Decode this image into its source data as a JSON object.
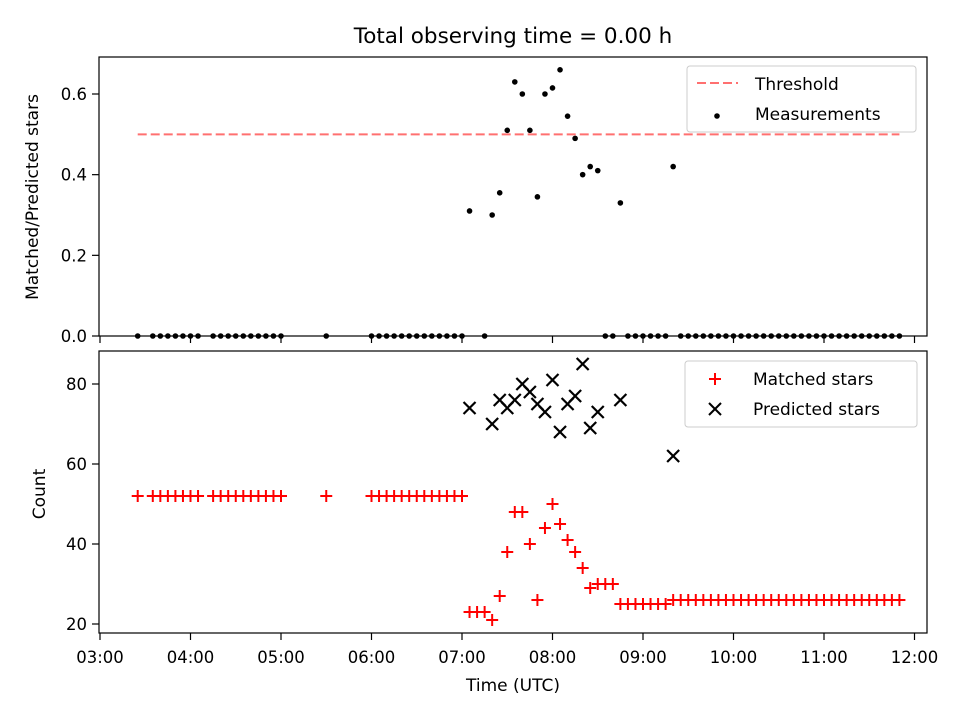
{
  "title": "Total observing time = 0.00 h",
  "chart_data": [
    {
      "type": "scatter",
      "ylabel": "Matched/Predicted stars",
      "xlabel": "",
      "xlim": [
        "03:00",
        "12:15"
      ],
      "ylim": [
        0,
        0.7
      ],
      "yticks": [
        0.0,
        0.2,
        0.4,
        0.6
      ],
      "ytick_labels": [
        "0.0",
        "0.2",
        "0.4",
        "0.6"
      ],
      "legend_position": "top-right",
      "legend": [
        "Threshold",
        "Measurements"
      ],
      "threshold": {
        "name": "Threshold",
        "value": 0.5,
        "x_start": "03:25",
        "x_end": "11:50",
        "color": "#ff7070",
        "style": "dashed"
      },
      "series": [
        {
          "name": "Measurements",
          "color": "#000000",
          "marker": "dot",
          "points": [
            [
              "03:25",
              0
            ],
            [
              "03:35",
              0
            ],
            [
              "03:40",
              0
            ],
            [
              "03:45",
              0
            ],
            [
              "03:50",
              0
            ],
            [
              "03:55",
              0
            ],
            [
              "04:00",
              0
            ],
            [
              "04:05",
              0
            ],
            [
              "04:15",
              0
            ],
            [
              "04:20",
              0
            ],
            [
              "04:25",
              0
            ],
            [
              "04:30",
              0
            ],
            [
              "04:35",
              0
            ],
            [
              "04:40",
              0
            ],
            [
              "04:45",
              0
            ],
            [
              "04:50",
              0
            ],
            [
              "04:55",
              0
            ],
            [
              "05:00",
              0
            ],
            [
              "05:30",
              0
            ],
            [
              "06:00",
              0
            ],
            [
              "06:05",
              0
            ],
            [
              "06:10",
              0
            ],
            [
              "06:15",
              0
            ],
            [
              "06:20",
              0
            ],
            [
              "06:25",
              0
            ],
            [
              "06:30",
              0
            ],
            [
              "06:35",
              0
            ],
            [
              "06:40",
              0
            ],
            [
              "06:45",
              0
            ],
            [
              "06:50",
              0
            ],
            [
              "06:55",
              0
            ],
            [
              "07:00",
              0
            ],
            [
              "07:15",
              0
            ],
            [
              "07:05",
              0.31
            ],
            [
              "07:20",
              0.3
            ],
            [
              "07:25",
              0.355
            ],
            [
              "07:30",
              0.51
            ],
            [
              "07:35",
              0.63
            ],
            [
              "07:40",
              0.6
            ],
            [
              "07:45",
              0.51
            ],
            [
              "07:50",
              0.345
            ],
            [
              "07:55",
              0.6
            ],
            [
              "08:00",
              0.615
            ],
            [
              "08:05",
              0.66
            ],
            [
              "08:10",
              0.545
            ],
            [
              "08:15",
              0.49
            ],
            [
              "08:20",
              0.4
            ],
            [
              "08:25",
              0.42
            ],
            [
              "08:30",
              0.41
            ],
            [
              "08:45",
              0.33
            ],
            [
              "09:20",
              0.42
            ],
            [
              "08:35",
              0
            ],
            [
              "08:40",
              0
            ],
            [
              "08:50",
              0
            ],
            [
              "08:55",
              0
            ],
            [
              "09:00",
              0
            ],
            [
              "09:05",
              0
            ],
            [
              "09:10",
              0
            ],
            [
              "09:15",
              0
            ],
            [
              "09:25",
              0
            ],
            [
              "09:30",
              0
            ],
            [
              "09:35",
              0
            ],
            [
              "09:40",
              0
            ],
            [
              "09:45",
              0
            ],
            [
              "09:50",
              0
            ],
            [
              "09:55",
              0
            ],
            [
              "10:00",
              0
            ],
            [
              "10:05",
              0
            ],
            [
              "10:10",
              0
            ],
            [
              "10:15",
              0
            ],
            [
              "10:20",
              0
            ],
            [
              "10:25",
              0
            ],
            [
              "10:30",
              0
            ],
            [
              "10:35",
              0
            ],
            [
              "10:40",
              0
            ],
            [
              "10:45",
              0
            ],
            [
              "10:50",
              0
            ],
            [
              "10:55",
              0
            ],
            [
              "11:00",
              0
            ],
            [
              "11:05",
              0
            ],
            [
              "11:10",
              0
            ],
            [
              "11:15",
              0
            ],
            [
              "11:20",
              0
            ],
            [
              "11:25",
              0
            ],
            [
              "11:30",
              0
            ],
            [
              "11:35",
              0
            ],
            [
              "11:40",
              0
            ],
            [
              "11:45",
              0
            ],
            [
              "11:50",
              0
            ]
          ]
        }
      ]
    },
    {
      "type": "scatter",
      "ylabel": "Count",
      "xlabel": "Time (UTC)",
      "xlim": [
        "03:00",
        "12:15"
      ],
      "ylim": [
        18,
        89
      ],
      "yticks": [
        20,
        40,
        60,
        80
      ],
      "ytick_labels": [
        "20",
        "40",
        "60",
        "80"
      ],
      "xticks": [
        "03:00",
        "04:00",
        "05:00",
        "06:00",
        "07:00",
        "08:00",
        "09:00",
        "10:00",
        "11:00",
        "12:00"
      ],
      "legend_position": "top-right",
      "legend": [
        "Matched stars",
        "Predicted stars"
      ],
      "series": [
        {
          "name": "Matched stars",
          "color": "#ff0000",
          "marker": "plus",
          "points": [
            [
              "03:25",
              52
            ],
            [
              "03:35",
              52
            ],
            [
              "03:40",
              52
            ],
            [
              "03:45",
              52
            ],
            [
              "03:50",
              52
            ],
            [
              "03:55",
              52
            ],
            [
              "04:00",
              52
            ],
            [
              "04:05",
              52
            ],
            [
              "04:15",
              52
            ],
            [
              "04:20",
              52
            ],
            [
              "04:25",
              52
            ],
            [
              "04:30",
              52
            ],
            [
              "04:35",
              52
            ],
            [
              "04:40",
              52
            ],
            [
              "04:45",
              52
            ],
            [
              "04:50",
              52
            ],
            [
              "04:55",
              52
            ],
            [
              "05:00",
              52
            ],
            [
              "05:30",
              52
            ],
            [
              "06:00",
              52
            ],
            [
              "06:05",
              52
            ],
            [
              "06:10",
              52
            ],
            [
              "06:15",
              52
            ],
            [
              "06:20",
              52
            ],
            [
              "06:25",
              52
            ],
            [
              "06:30",
              52
            ],
            [
              "06:35",
              52
            ],
            [
              "06:40",
              52
            ],
            [
              "06:45",
              52
            ],
            [
              "06:50",
              52
            ],
            [
              "06:55",
              52
            ],
            [
              "07:00",
              52
            ],
            [
              "07:05",
              23
            ],
            [
              "07:10",
              23
            ],
            [
              "07:15",
              23
            ],
            [
              "07:20",
              21
            ],
            [
              "07:25",
              27
            ],
            [
              "07:30",
              38
            ],
            [
              "07:35",
              48
            ],
            [
              "07:40",
              48
            ],
            [
              "07:45",
              40
            ],
            [
              "07:50",
              26
            ],
            [
              "07:55",
              44
            ],
            [
              "08:00",
              50
            ],
            [
              "08:05",
              45
            ],
            [
              "08:10",
              41
            ],
            [
              "08:15",
              38
            ],
            [
              "08:20",
              34
            ],
            [
              "08:25",
              29
            ],
            [
              "08:30",
              30
            ],
            [
              "08:35",
              30
            ],
            [
              "08:40",
              30
            ],
            [
              "08:45",
              25
            ],
            [
              "08:50",
              25
            ],
            [
              "08:55",
              25
            ],
            [
              "09:00",
              25
            ],
            [
              "09:05",
              25
            ],
            [
              "09:10",
              25
            ],
            [
              "09:15",
              25
            ],
            [
              "09:20",
              26
            ],
            [
              "09:25",
              26
            ],
            [
              "09:30",
              26
            ],
            [
              "09:35",
              26
            ],
            [
              "09:40",
              26
            ],
            [
              "09:45",
              26
            ],
            [
              "09:50",
              26
            ],
            [
              "09:55",
              26
            ],
            [
              "10:00",
              26
            ],
            [
              "10:05",
              26
            ],
            [
              "10:10",
              26
            ],
            [
              "10:15",
              26
            ],
            [
              "10:20",
              26
            ],
            [
              "10:25",
              26
            ],
            [
              "10:30",
              26
            ],
            [
              "10:35",
              26
            ],
            [
              "10:40",
              26
            ],
            [
              "10:45",
              26
            ],
            [
              "10:50",
              26
            ],
            [
              "10:55",
              26
            ],
            [
              "11:00",
              26
            ],
            [
              "11:05",
              26
            ],
            [
              "11:10",
              26
            ],
            [
              "11:15",
              26
            ],
            [
              "11:20",
              26
            ],
            [
              "11:25",
              26
            ],
            [
              "11:30",
              26
            ],
            [
              "11:35",
              26
            ],
            [
              "11:40",
              26
            ],
            [
              "11:45",
              26
            ],
            [
              "11:50",
              26
            ]
          ]
        },
        {
          "name": "Predicted stars",
          "color": "#000000",
          "marker": "x",
          "points": [
            [
              "07:05",
              74
            ],
            [
              "07:20",
              70
            ],
            [
              "07:25",
              76
            ],
            [
              "07:30",
              74
            ],
            [
              "07:35",
              76
            ],
            [
              "07:40",
              80
            ],
            [
              "07:45",
              78
            ],
            [
              "07:50",
              75
            ],
            [
              "07:55",
              73
            ],
            [
              "08:00",
              81
            ],
            [
              "08:05",
              68
            ],
            [
              "08:10",
              75
            ],
            [
              "08:15",
              77
            ],
            [
              "08:20",
              85
            ],
            [
              "08:25",
              69
            ],
            [
              "08:30",
              73
            ],
            [
              "08:45",
              76
            ],
            [
              "09:20",
              62
            ]
          ]
        }
      ]
    }
  ]
}
